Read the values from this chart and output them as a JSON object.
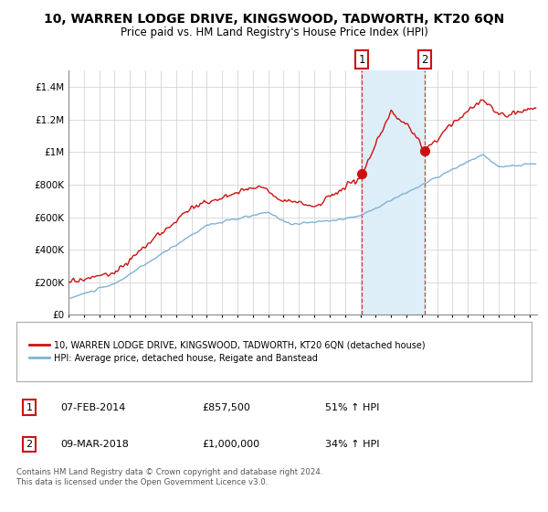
{
  "title": "10, WARREN LODGE DRIVE, KINGSWOOD, TADWORTH, KT20 6QN",
  "subtitle": "Price paid vs. HM Land Registry's House Price Index (HPI)",
  "legend_line1": "10, WARREN LODGE DRIVE, KINGSWOOD, TADWORTH, KT20 6QN (detached house)",
  "legend_line2": "HPI: Average price, detached house, Reigate and Banstead",
  "sale1_date": "07-FEB-2014",
  "sale1_price": "£857,500",
  "sale1_hpi": "51% ↑ HPI",
  "sale1_year": 2014.083,
  "sale2_date": "09-MAR-2018",
  "sale2_price": "£1,000,000",
  "sale2_hpi": "34% ↑ HPI",
  "sale2_year": 2018.167,
  "footer": "Contains HM Land Registry data © Crown copyright and database right 2024.\nThis data is licensed under the Open Government Licence v3.0.",
  "ylim": [
    0,
    1500000
  ],
  "hpi_color": "#7fb3d3",
  "sale_color": "#cc1111",
  "shade_color": "#ddeef8",
  "background_color": "#ffffff",
  "grid_color": "#cccccc"
}
